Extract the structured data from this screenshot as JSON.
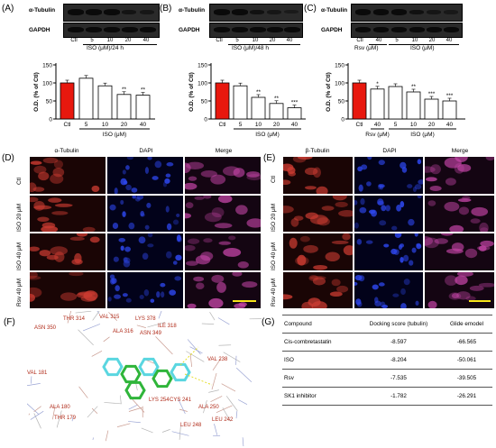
{
  "panels": {
    "A": {
      "label": "(A)",
      "blot_top": "α-Tubulin",
      "blot_bottom": "GAPDH",
      "lanes": [
        "Ctl",
        "5",
        "10",
        "20",
        "40"
      ],
      "treatment": "ISO (μM)/24 h",
      "chart_data": {
        "type": "bar",
        "categories": [
          "Ctl",
          "5",
          "10",
          "20",
          "40"
        ],
        "values": [
          100,
          113,
          92,
          68,
          66
        ],
        "significance": [
          "",
          "",
          "",
          "**",
          "**"
        ],
        "ylabel": "O.D. (% of Ctl)",
        "xlabel": "ISO (μM)",
        "ylim": [
          0,
          150
        ],
        "yticks": [
          "0",
          "50",
          "100",
          "150"
        ]
      }
    },
    "B": {
      "label": "(B)",
      "blot_top": "α-Tubulin",
      "blot_bottom": "GAPDH",
      "lanes": [
        "Ctl",
        "5",
        "10",
        "20",
        "40"
      ],
      "treatment": "ISO (μM)/48 h",
      "chart_data": {
        "type": "bar",
        "categories": [
          "Ctl",
          "5",
          "10",
          "20",
          "40"
        ],
        "values": [
          100,
          92,
          60,
          43,
          31
        ],
        "significance": [
          "",
          "",
          "**",
          "**",
          "***"
        ],
        "ylabel": "O.D. (% of Ctl)",
        "xlabel": "ISO (μM)",
        "ylim": [
          0,
          150
        ],
        "yticks": [
          "0",
          "50",
          "100",
          "150"
        ]
      }
    },
    "C": {
      "label": "(C)",
      "blot_top": "α-Tubulin",
      "blot_bottom": "GAPDH",
      "lanes": [
        "Ctl",
        "40",
        "5",
        "10",
        "20",
        "40"
      ],
      "lane_groups": [
        "Rsv (μM)",
        "ISO (μM)"
      ],
      "chart_data": {
        "type": "bar",
        "categories": [
          "Ctl",
          "40",
          "5",
          "10",
          "20",
          "40"
        ],
        "values": [
          100,
          83,
          90,
          75,
          55,
          50
        ],
        "significance": [
          "",
          "*",
          "",
          "**",
          "***",
          "***"
        ],
        "ylabel": "O.D. (% of Ctl)",
        "xlabel_groups": [
          "Rsv (μM)",
          "ISO (μM)"
        ],
        "ylim": [
          0,
          150
        ],
        "yticks": [
          "0",
          "50",
          "100",
          "150"
        ]
      }
    },
    "D": {
      "label": "(D)",
      "columns": [
        "α-Tubulin",
        "DAPI",
        "Merge"
      ],
      "rows": [
        "Ctl",
        "ISO 20 μM",
        "ISO 40 μM",
        "Rsv 40 μM"
      ]
    },
    "E": {
      "label": "(E)",
      "columns": [
        "β-Tubulin",
        "DAPI",
        "Merge"
      ],
      "rows": [
        "Ctl",
        "ISO 20 μM",
        "ISO 40 μM",
        "Rsv 40 μM"
      ]
    },
    "F": {
      "label": "(F)",
      "residues": [
        "ASN 350",
        "THR 314",
        "VAL 315",
        "ALA 316",
        "ASN 349",
        "LYS 378",
        "ILE 318",
        "VAL 238",
        "VAL 181",
        "ALA 180",
        "THR 179",
        "CYS 241",
        "LEU 248",
        "LYS 254",
        "ALA 250",
        "LEU 242"
      ]
    },
    "G": {
      "label": "(G)",
      "headers": [
        "Compound",
        "Docking score (tubulin)",
        "Glide emodel"
      ],
      "rows": [
        [
          "Cis-combretastatin",
          "-8.597",
          "-66.565"
        ],
        [
          "ISO",
          "-8.204",
          "-50.061"
        ],
        [
          "Rsv",
          "-7.535",
          "-39.505"
        ],
        [
          "SK1 inhibitor",
          "-1.782",
          "-26.291"
        ]
      ]
    }
  },
  "colors": {
    "control_bar": "#e8180e",
    "bar": "#ffffff",
    "microscopy_red": "#c0302a",
    "microscopy_blue": "#2a3de0",
    "scale_bar": "#f7e51a"
  }
}
